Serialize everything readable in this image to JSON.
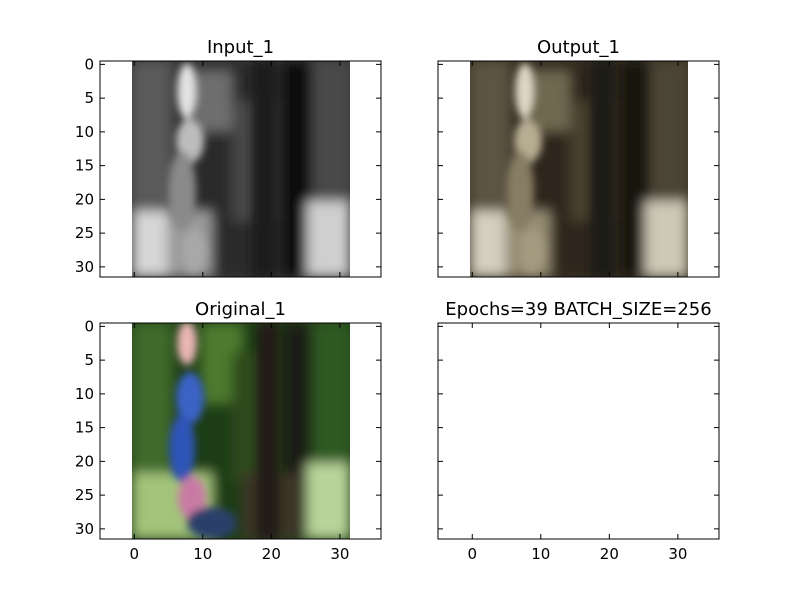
{
  "chart_data": [
    {
      "type": "image",
      "title": "Input_1",
      "xlim": [
        -5,
        36
      ],
      "ylim": [
        31.5,
        -0.5
      ],
      "xticks": [
        "0",
        "10",
        "20",
        "30"
      ],
      "yticks": [
        "0",
        "5",
        "10",
        "15",
        "20",
        "25",
        "30"
      ],
      "show_xtick_labels": false,
      "show_ytick_labels": true,
      "colormap": "grayscale"
    },
    {
      "type": "image",
      "title": "Output_1",
      "xlim": [
        -5,
        36
      ],
      "ylim": [
        31.5,
        -0.5
      ],
      "xticks": [
        "0",
        "10",
        "20",
        "30"
      ],
      "yticks": [
        "0",
        "5",
        "10",
        "15",
        "20",
        "25",
        "30"
      ],
      "show_xtick_labels": false,
      "show_ytick_labels": false,
      "colormap": "sepia"
    },
    {
      "type": "image",
      "title": "Original_1",
      "xlim": [
        -5,
        36
      ],
      "ylim": [
        31.5,
        -0.5
      ],
      "xticks": [
        "0",
        "10",
        "20",
        "30"
      ],
      "yticks": [
        "0",
        "5",
        "10",
        "15",
        "20",
        "25",
        "30"
      ],
      "show_xtick_labels": true,
      "show_ytick_labels": true,
      "colormap": "color"
    },
    {
      "type": "empty",
      "title": "Epochs=39 BATCH_SIZE=256",
      "xlim": [
        -5,
        36
      ],
      "ylim": [
        31.5,
        -0.5
      ],
      "xticks": [
        "0",
        "10",
        "20",
        "30"
      ],
      "yticks": [
        "0",
        "5",
        "10",
        "15",
        "20",
        "25",
        "30"
      ],
      "show_xtick_labels": true,
      "show_ytick_labels": false
    }
  ]
}
